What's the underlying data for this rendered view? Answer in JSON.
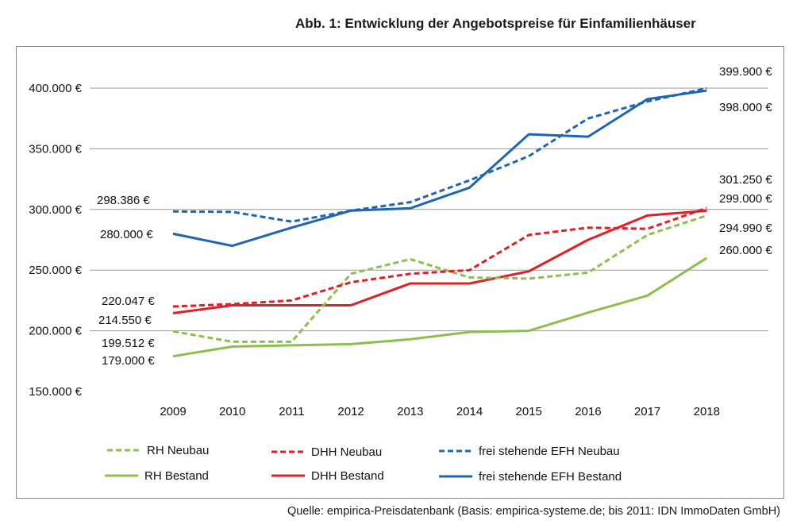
{
  "figure": {
    "title": "Abb. 1: Entwicklung der Angebotspreise für Einfamilienhäuser",
    "source": "Quelle: empirica-Preisdatenbank (Basis: empirica-systeme.de; bis 2011: IDN ImmoDaten GmbH)"
  },
  "chart_data": {
    "type": "line",
    "title": "Abb. 1: Entwicklung der Angebotspreise für Einfamilienhäuser",
    "x": [
      "2009",
      "2010",
      "2011",
      "2012",
      "2013",
      "2014",
      "2015",
      "2016",
      "2017",
      "2018"
    ],
    "ylim": [
      150000,
      400000
    ],
    "yticks": [
      150000,
      200000,
      250000,
      300000,
      350000,
      400000
    ],
    "ytick_labels": [
      "150.000 €",
      "200.000 €",
      "250.000 €",
      "300.000 €",
      "350.000 €",
      "400.000 €"
    ],
    "grid": true,
    "legend_position": "bottom",
    "series": [
      {
        "name": "RH Neubau",
        "color": "#8dbf4f",
        "dashed": true,
        "values": [
          199512,
          191000,
          191000,
          247000,
          259000,
          244000,
          243000,
          248000,
          279000,
          294990
        ]
      },
      {
        "name": "DHH Neubau",
        "color": "#e31e24",
        "dashed": true,
        "values": [
          220047,
          222000,
          225000,
          240000,
          247000,
          250000,
          279000,
          285000,
          284000,
          301250
        ]
      },
      {
        "name": "frei stehende EFH Neubau",
        "color": "#1f66b0",
        "dashed": true,
        "values": [
          298386,
          298000,
          290000,
          299000,
          306000,
          324000,
          344000,
          375000,
          389000,
          399900
        ]
      },
      {
        "name": "RH Bestand",
        "color": "#8dbf4f",
        "dashed": false,
        "values": [
          179000,
          187000,
          188000,
          189000,
          193000,
          199000,
          200000,
          215000,
          229000,
          260000
        ]
      },
      {
        "name": "DHH Bestand",
        "color": "#e31e24",
        "dashed": false,
        "values": [
          214550,
          221000,
          221000,
          221000,
          239000,
          239000,
          249000,
          275000,
          295000,
          299000
        ]
      },
      {
        "name": "frei stehende EFH Bestand",
        "color": "#1f66b0",
        "dashed": false,
        "values": [
          280000,
          270000,
          285000,
          299000,
          301000,
          318000,
          362000,
          360000,
          391000,
          398000
        ]
      }
    ],
    "annotations": [
      {
        "series": "frei stehende EFH Neubau",
        "x": "2009",
        "value": 298386,
        "text": "298.386 €",
        "side": "left"
      },
      {
        "series": "frei stehende EFH Bestand",
        "x": "2009",
        "value": 280000,
        "text": "280.000 €",
        "side": "left"
      },
      {
        "series": "DHH Neubau",
        "x": "2009",
        "value": 220047,
        "text": "220.047 €",
        "side": "left"
      },
      {
        "series": "DHH Bestand",
        "x": "2009",
        "value": 214550,
        "text": "214.550 €",
        "side": "left"
      },
      {
        "series": "RH Neubau",
        "x": "2009",
        "value": 199512,
        "text": "199.512 €",
        "side": "left"
      },
      {
        "series": "RH Bestand",
        "x": "2009",
        "value": 179000,
        "text": "179.000 €",
        "side": "left"
      },
      {
        "series": "frei stehende EFH Neubau",
        "x": "2018",
        "value": 399900,
        "text": "399.900 €",
        "side": "right"
      },
      {
        "series": "frei stehende EFH Bestand",
        "x": "2018",
        "value": 398000,
        "text": "398.000 €",
        "side": "right"
      },
      {
        "series": "DHH Neubau",
        "x": "2018",
        "value": 301250,
        "text": "301.250 €",
        "side": "right"
      },
      {
        "series": "DHH Bestand",
        "x": "2018",
        "value": 299000,
        "text": "299.000 €",
        "side": "right"
      },
      {
        "series": "RH Neubau",
        "x": "2018",
        "value": 294990,
        "text": "294.990 €",
        "side": "right"
      },
      {
        "series": "RH Bestand",
        "x": "2018",
        "value": 260000,
        "text": "260.000 €",
        "side": "right"
      }
    ]
  }
}
